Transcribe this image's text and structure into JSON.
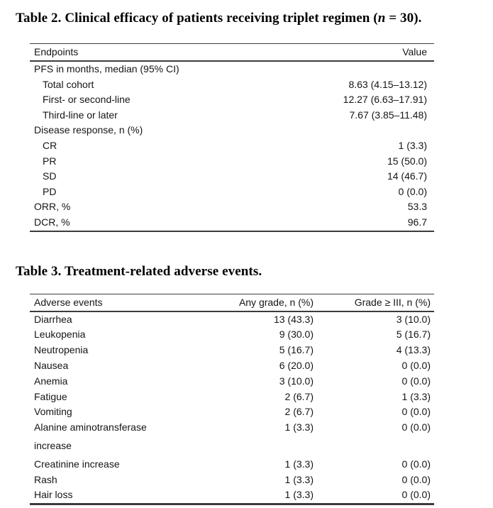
{
  "page": {
    "background": "#ffffff",
    "text_color": "#111111",
    "rule_color": "#3c3c3c"
  },
  "table2": {
    "title_pre": "Table 2. Clinical efficacy of patients receiving triplet regimen (",
    "title_n": "n",
    "title_post": " = 30).",
    "columns": [
      "Endpoints",
      "Value"
    ],
    "rows": [
      {
        "label": "PFS in months, median (95% CI)",
        "value": ""
      },
      {
        "label": "Total cohort",
        "value": "8.63 (4.15–13.12)"
      },
      {
        "label": "First- or second-line",
        "value": "12.27 (6.63–17.91)"
      },
      {
        "label": "Third-line or later",
        "value": "7.67 (3.85–11.48)"
      },
      {
        "label": "Disease response, n (%)",
        "value": ""
      },
      {
        "label": "CR",
        "value": "1 (3.3)"
      },
      {
        "label": "PR",
        "value": "15 (50.0)"
      },
      {
        "label": "SD",
        "value": "14 (46.7)"
      },
      {
        "label": "PD",
        "value": "0 (0.0)"
      },
      {
        "label": "ORR, %",
        "value": "53.3"
      },
      {
        "label": "DCR, %",
        "value": "96.7"
      }
    ]
  },
  "table3": {
    "title": "Table 3. Treatment-related adverse events.",
    "columns": [
      "Adverse events",
      "Any grade, n (%)",
      "Grade ≥ III, n (%)"
    ],
    "rows": [
      {
        "label": "Diarrhea",
        "any_grade": "13 (43.3)",
        "grade3": "3 (10.0)"
      },
      {
        "label": "Leukopenia",
        "any_grade": "9 (30.0)",
        "grade3": "5 (16.7)"
      },
      {
        "label": "Neutropenia",
        "any_grade": "5 (16.7)",
        "grade3": "4 (13.3)"
      },
      {
        "label": "Nausea",
        "any_grade": "6 (20.0)",
        "grade3": "0 (0.0)"
      },
      {
        "label": "Anemia",
        "any_grade": "3 (10.0)",
        "grade3": "0 (0.0)"
      },
      {
        "label": "Fatigue",
        "any_grade": "2 (6.7)",
        "grade3": "1 (3.3)"
      },
      {
        "label": "Vomiting",
        "any_grade": "2 (6.7)",
        "grade3": "0 (0.0)"
      },
      {
        "label": "Alanine aminotransferase",
        "any_grade": "1 (3.3)",
        "grade3": "0 (0.0)"
      },
      {
        "label": "increase",
        "any_grade": "",
        "grade3": ""
      },
      {
        "label": "Creatinine increase",
        "any_grade": "1 (3.3)",
        "grade3": "0 (0.0)"
      },
      {
        "label": "Rash",
        "any_grade": "1 (3.3)",
        "grade3": "0 (0.0)"
      },
      {
        "label": "Hair loss",
        "any_grade": "1 (3.3)",
        "grade3": "0 (0.0)"
      }
    ]
  }
}
